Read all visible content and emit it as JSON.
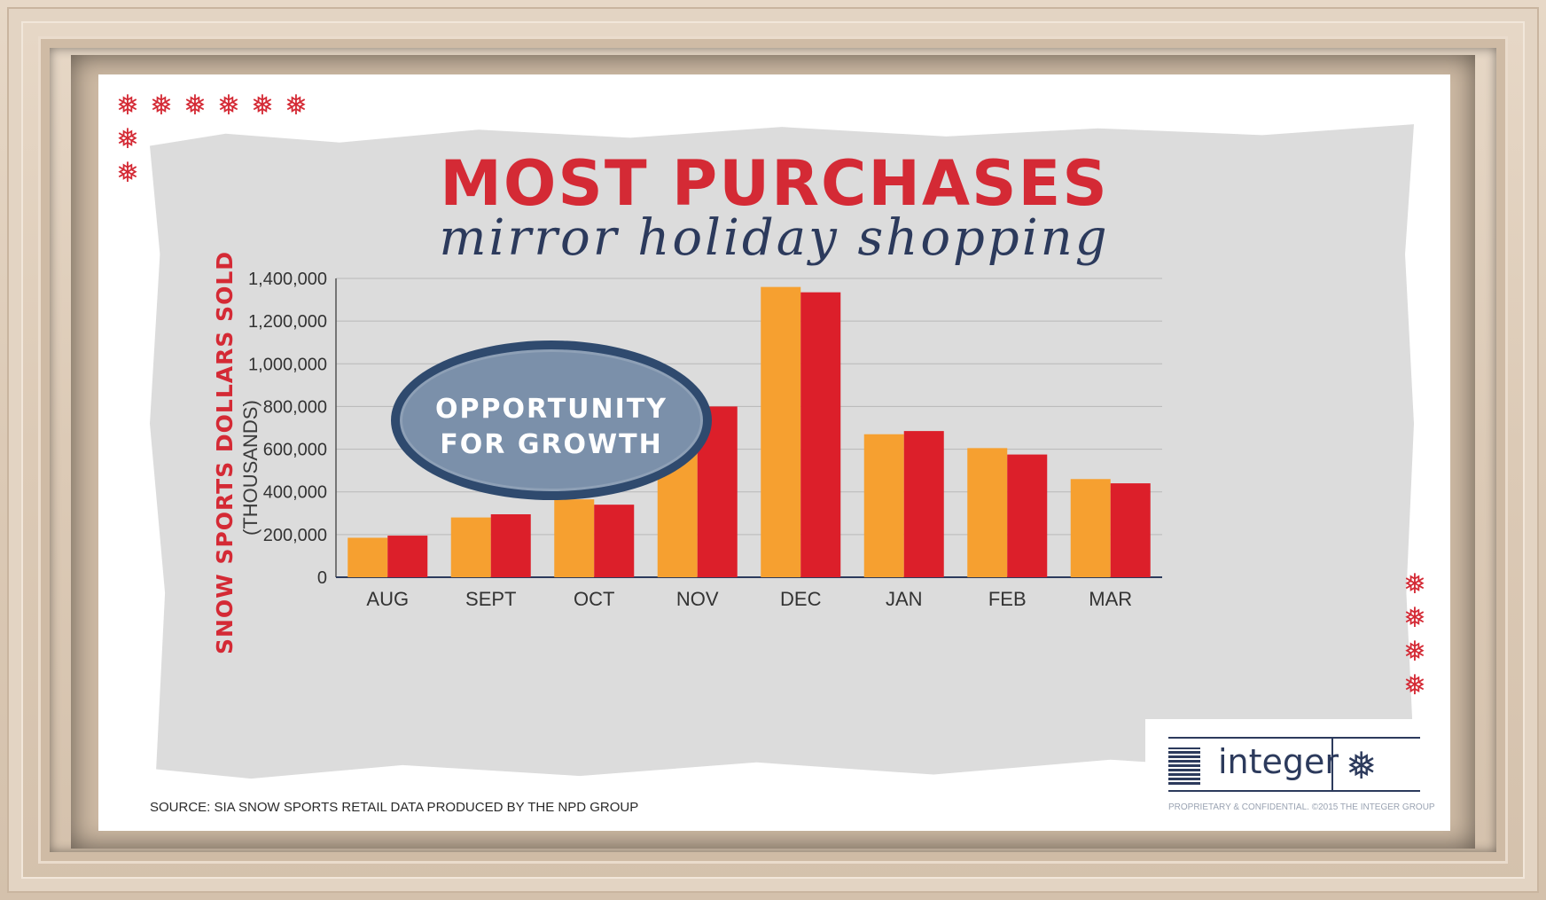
{
  "colors": {
    "series_a": "#f6a030",
    "series_b": "#dc1f2a",
    "title": "#d42a35",
    "subtitle": "#2c3a5c",
    "callout_fill": "#7b90aa",
    "callout_border": "#2f4a6e",
    "paper": "#dcdcdc",
    "logo": "#2c3a5c"
  },
  "decorations": {
    "snowflake_glyph": "❅"
  },
  "slide": {
    "title": "MOST PURCHASES",
    "subtitle": "mirror holiday shopping",
    "callout_line1": "OPPORTUNITY",
    "callout_line2": "FOR GROWTH",
    "source": "SOURCE: SIA SNOW SPORTS RETAIL DATA PRODUCED BY THE NPD GROUP"
  },
  "logo": {
    "name": "integer",
    "icon": "snowflake-icon",
    "legal": "PROPRIETARY & CONFIDENTIAL. ©2015 THE INTEGER GROUP"
  },
  "chart_data": {
    "type": "bar",
    "title": "MOST PURCHASES",
    "subtitle": "mirror holiday shopping",
    "ylabel": "SNOW SPORTS DOLLARS SOLD",
    "ylabel_unit": "(THOUSANDS)",
    "xlabel": "",
    "categories": [
      "AUG",
      "SEPT",
      "OCT",
      "NOV",
      "DEC",
      "JAN",
      "FEB",
      "MAR"
    ],
    "series": [
      {
        "values": [
          185000,
          280000,
          365000,
          815000,
          1360000,
          670000,
          605000,
          460000
        ]
      },
      {
        "values": [
          195000,
          295000,
          340000,
          800000,
          1335000,
          685000,
          575000,
          440000
        ]
      }
    ],
    "ylim": [
      0,
      1400000
    ],
    "yticks": [
      0,
      200000,
      400000,
      600000,
      800000,
      1000000,
      1200000,
      1400000
    ],
    "ytick_labels": [
      "0",
      "200,000",
      "400,000",
      "600,000",
      "800,000",
      "1,000,000",
      "1,200,000",
      "1,400,000"
    ],
    "grid": true,
    "legend": "none"
  }
}
